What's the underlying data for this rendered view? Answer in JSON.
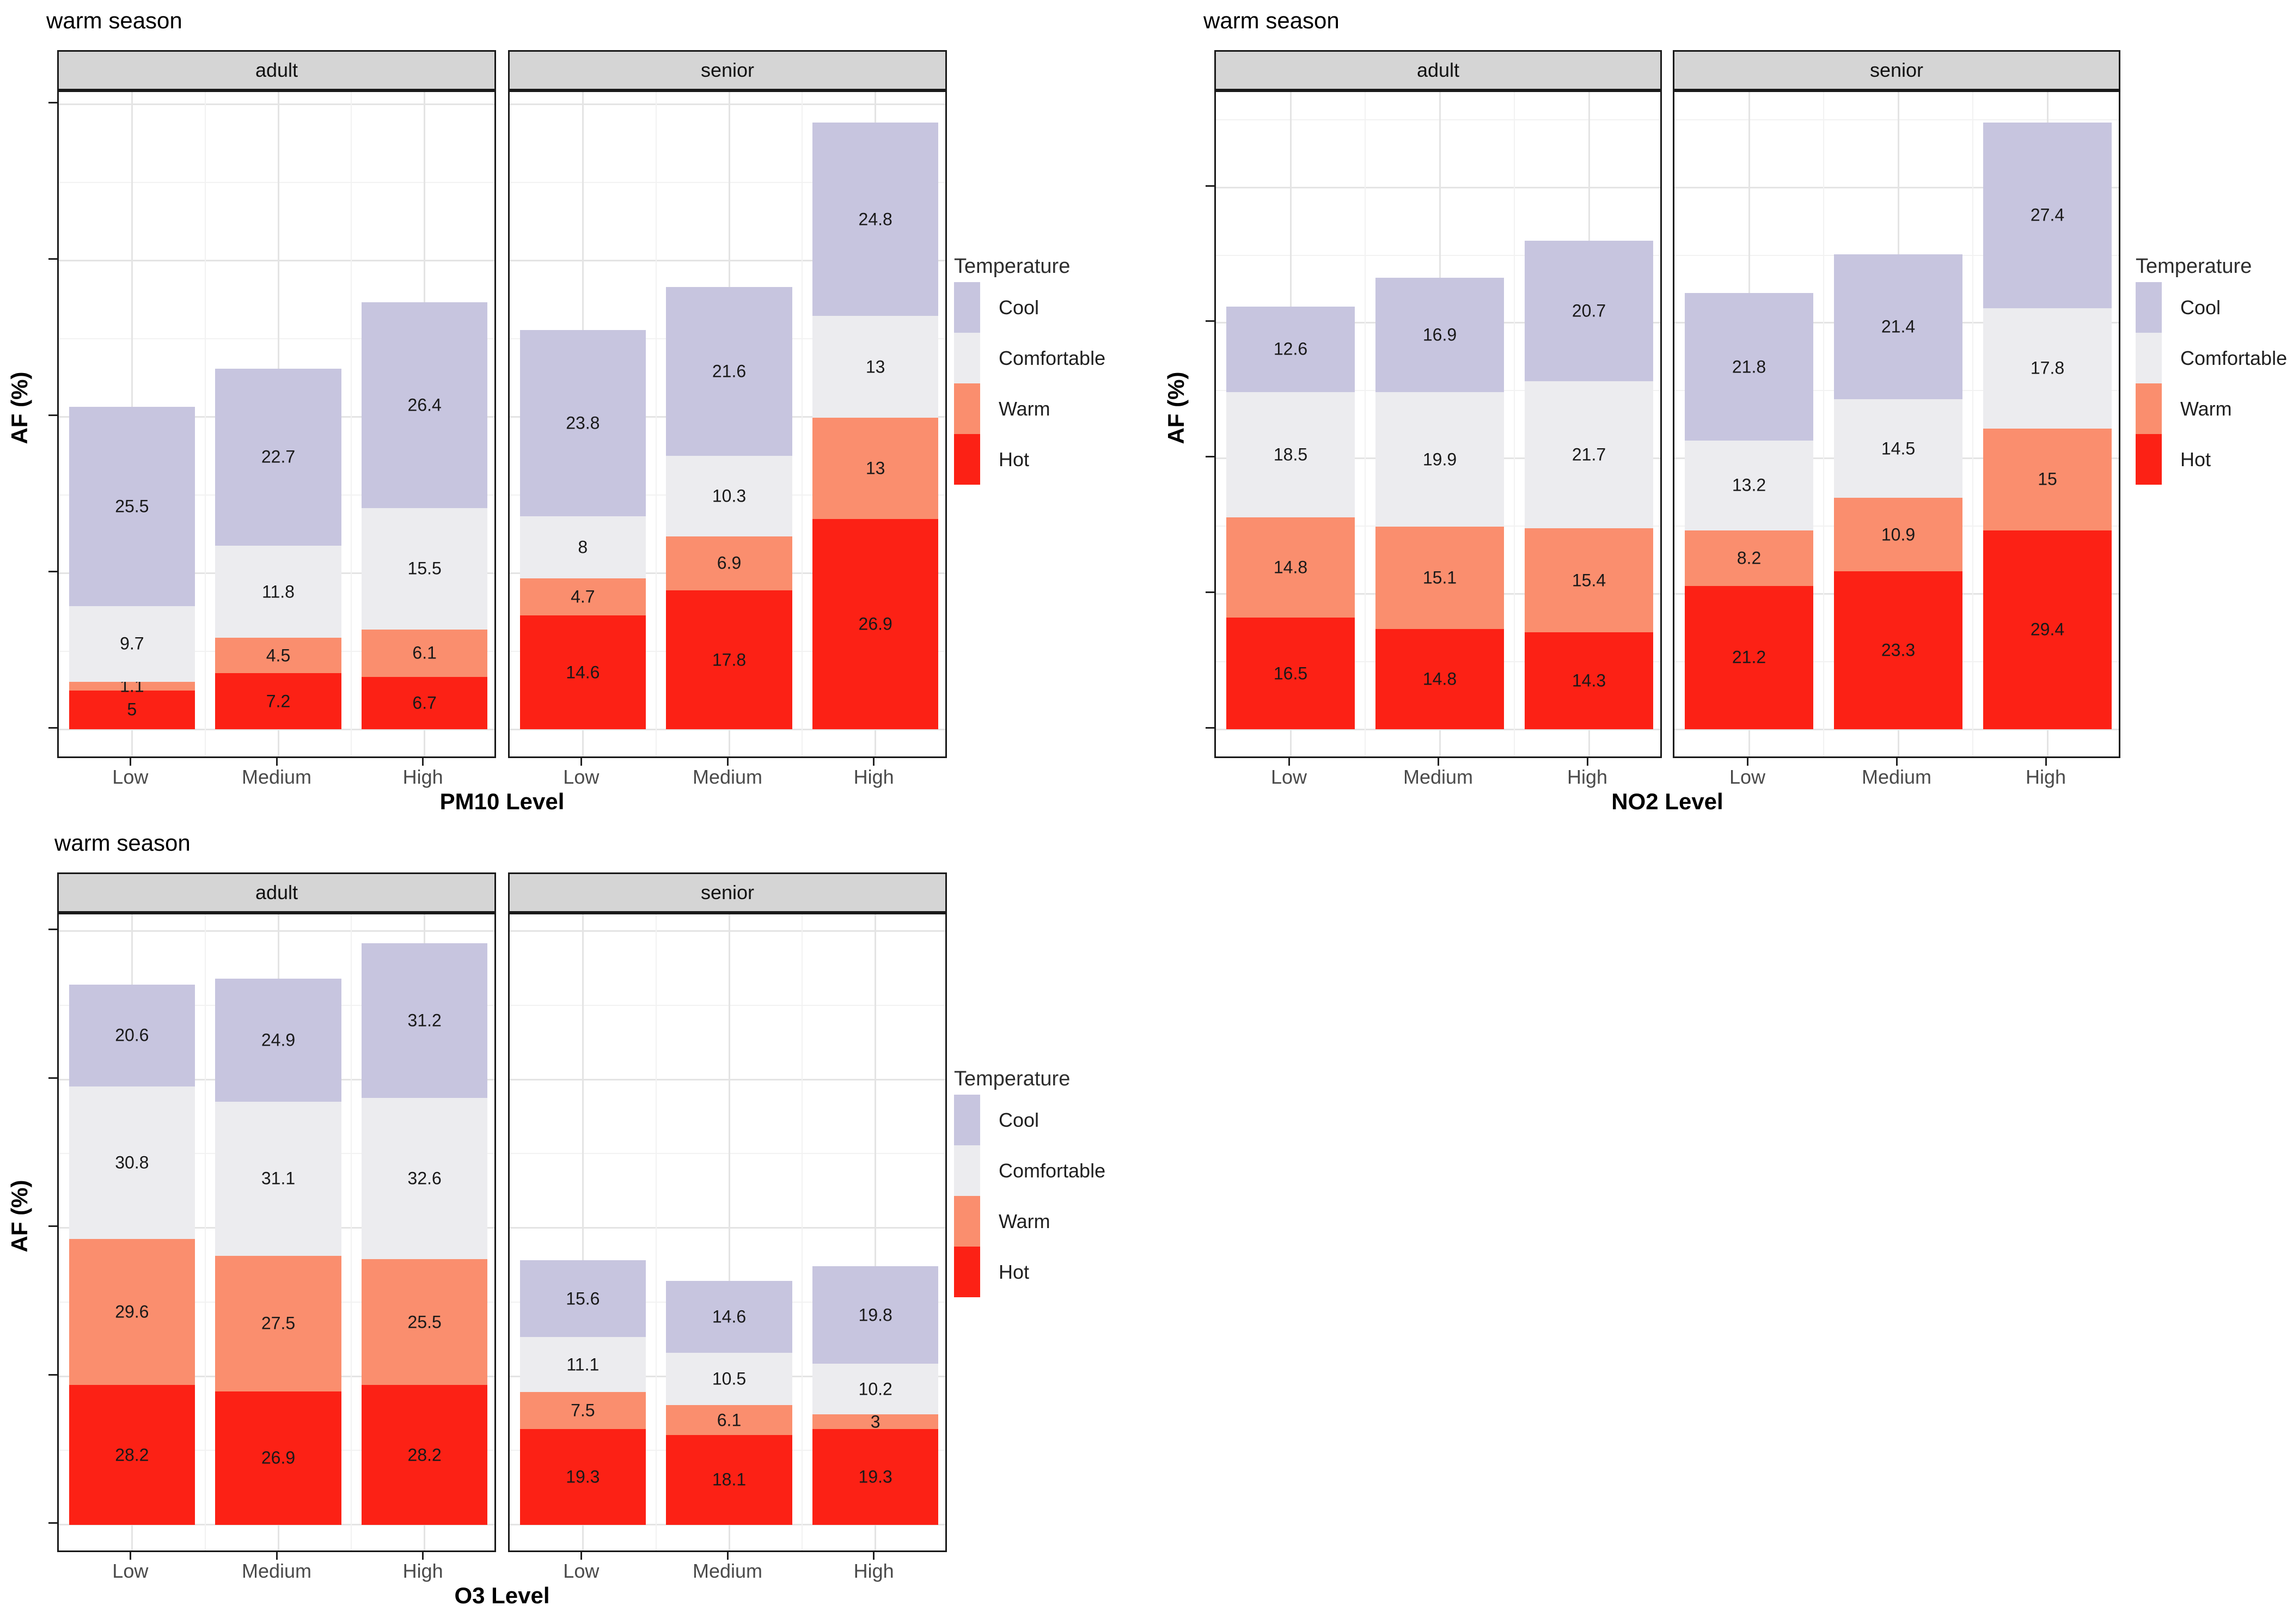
{
  "colors": {
    "Cool": "#c7c5df",
    "Comfortable": "#ececef",
    "Warm": "#fa8e6e",
    "Hot": "#fc2115",
    "strip_bg": "#d5d5d5",
    "grid_major": "#e4e4e4",
    "grid_minor": "#f2f2f2",
    "panel_border": "#1a1a1a",
    "axis_text": "#4a4a4a",
    "text": "#000000"
  },
  "legend": {
    "title": "Temperature",
    "position": "right",
    "items": [
      {
        "label": "Cool",
        "color": "#c7c5df"
      },
      {
        "label": "Comfortable",
        "color": "#ececef"
      },
      {
        "label": "Warm",
        "color": "#fa8e6e"
      },
      {
        "label": "Hot",
        "color": "#fc2115"
      }
    ]
  },
  "chart_data": [
    {
      "type": "bar",
      "stacked": true,
      "title": "warm season",
      "xlabel": "PM10 Level",
      "ylabel": "AF (%)",
      "categories": [
        "Low",
        "Medium",
        "High"
      ],
      "tick_step": 20,
      "grid": true,
      "legend_position": "right",
      "facets": [
        {
          "label": "adult",
          "series": [
            {
              "name": "Hot",
              "values": [
                5,
                7.2,
                6.7
              ]
            },
            {
              "name": "Warm",
              "values": [
                1.1,
                4.5,
                6.1
              ]
            },
            {
              "name": "Comfortable",
              "values": [
                9.7,
                11.8,
                15.5
              ]
            },
            {
              "name": "Cool",
              "values": [
                25.5,
                22.7,
                26.4
              ]
            }
          ]
        },
        {
          "label": "senior",
          "series": [
            {
              "name": "Hot",
              "values": [
                14.6,
                17.8,
                26.9
              ]
            },
            {
              "name": "Warm",
              "values": [
                4.7,
                6.9,
                13
              ]
            },
            {
              "name": "Comfortable",
              "values": [
                8,
                10.3,
                13
              ]
            },
            {
              "name": "Cool",
              "values": [
                23.8,
                21.6,
                24.8
              ]
            }
          ]
        }
      ]
    },
    {
      "type": "bar",
      "stacked": true,
      "title": "warm season",
      "xlabel": "NO2 Level",
      "ylabel": "AF (%)",
      "categories": [
        "Low",
        "Medium",
        "High"
      ],
      "tick_step": 20,
      "grid": true,
      "legend_position": "right",
      "facets": [
        {
          "label": "adult",
          "series": [
            {
              "name": "Hot",
              "values": [
                16.5,
                14.8,
                14.3
              ]
            },
            {
              "name": "Warm",
              "values": [
                14.8,
                15.1,
                15.4
              ]
            },
            {
              "name": "Comfortable",
              "values": [
                18.5,
                19.9,
                21.7
              ]
            },
            {
              "name": "Cool",
              "values": [
                12.6,
                16.9,
                20.7
              ]
            }
          ]
        },
        {
          "label": "senior",
          "series": [
            {
              "name": "Hot",
              "values": [
                21.2,
                23.3,
                29.4
              ]
            },
            {
              "name": "Warm",
              "values": [
                8.2,
                10.9,
                15
              ]
            },
            {
              "name": "Comfortable",
              "values": [
                13.2,
                14.5,
                17.8
              ]
            },
            {
              "name": "Cool",
              "values": [
                21.8,
                21.4,
                27.4
              ]
            }
          ]
        }
      ]
    },
    {
      "type": "bar",
      "stacked": true,
      "title": "warm season",
      "xlabel": "O3 Level",
      "ylabel": "AF (%)",
      "categories": [
        "Low",
        "Medium",
        "High"
      ],
      "tick_step": 30,
      "grid": true,
      "legend_position": "right",
      "facets": [
        {
          "label": "adult",
          "series": [
            {
              "name": "Hot",
              "values": [
                28.2,
                26.9,
                28.2
              ]
            },
            {
              "name": "Warm",
              "values": [
                29.6,
                27.5,
                25.5
              ]
            },
            {
              "name": "Comfortable",
              "values": [
                30.8,
                31.1,
                32.6
              ]
            },
            {
              "name": "Cool",
              "values": [
                20.6,
                24.9,
                31.2
              ]
            }
          ]
        },
        {
          "label": "senior",
          "series": [
            {
              "name": "Hot",
              "values": [
                19.3,
                18.1,
                19.3
              ]
            },
            {
              "name": "Warm",
              "values": [
                7.5,
                6.1,
                3
              ]
            },
            {
              "name": "Comfortable",
              "values": [
                11.1,
                10.5,
                10.2
              ]
            },
            {
              "name": "Cool",
              "values": [
                15.6,
                14.6,
                19.8
              ]
            }
          ]
        }
      ]
    }
  ]
}
